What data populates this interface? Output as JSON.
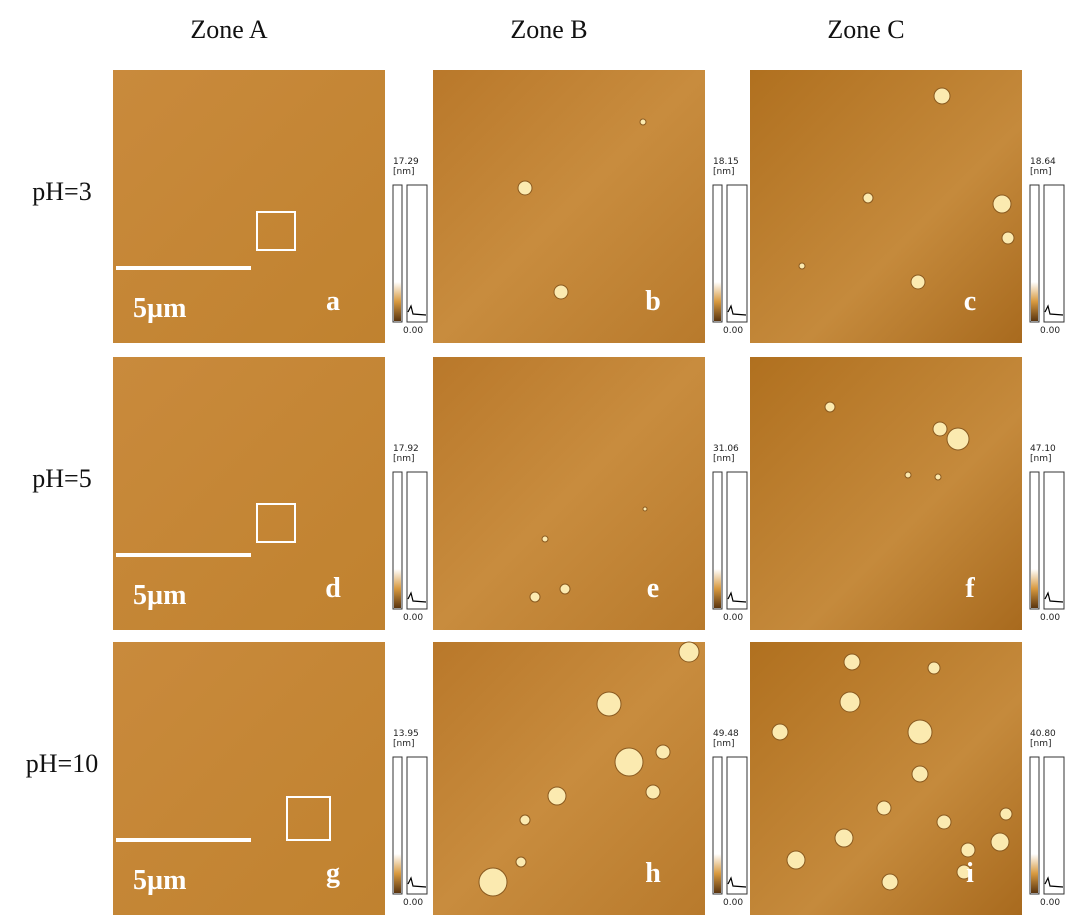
{
  "columns": [
    "Zone A",
    "Zone B",
    "Zone C"
  ],
  "rows": [
    {
      "label": "pH=3",
      "panels": [
        {
          "letter": "a",
          "scale_bar": "5µm",
          "max": "17.29",
          "unit": "[nm]",
          "min": "0.00"
        },
        {
          "letter": "b",
          "max": "18.15",
          "unit": "[nm]",
          "min": "0.00"
        },
        {
          "letter": "c",
          "max": "18.64",
          "unit": "[nm]",
          "min": "0.00"
        }
      ]
    },
    {
      "label": "pH=5",
      "panels": [
        {
          "letter": "d",
          "scale_bar": "5µm",
          "max": "17.92",
          "unit": "[nm]",
          "min": "0.00"
        },
        {
          "letter": "e",
          "max": "31.06",
          "unit": "[nm]",
          "min": "0.00"
        },
        {
          "letter": "f",
          "max": "47.10",
          "unit": "[nm]",
          "min": "0.00"
        }
      ]
    },
    {
      "label": "pH=10",
      "panels": [
        {
          "letter": "g",
          "scale_bar": "5µm",
          "max": "13.95",
          "unit": "[nm]",
          "min": "0.00"
        },
        {
          "letter": "h",
          "max": "49.48",
          "unit": "[nm]",
          "min": "0.00"
        },
        {
          "letter": "i",
          "max": "40.80",
          "unit": "[nm]",
          "min": "0.00"
        }
      ]
    }
  ]
}
